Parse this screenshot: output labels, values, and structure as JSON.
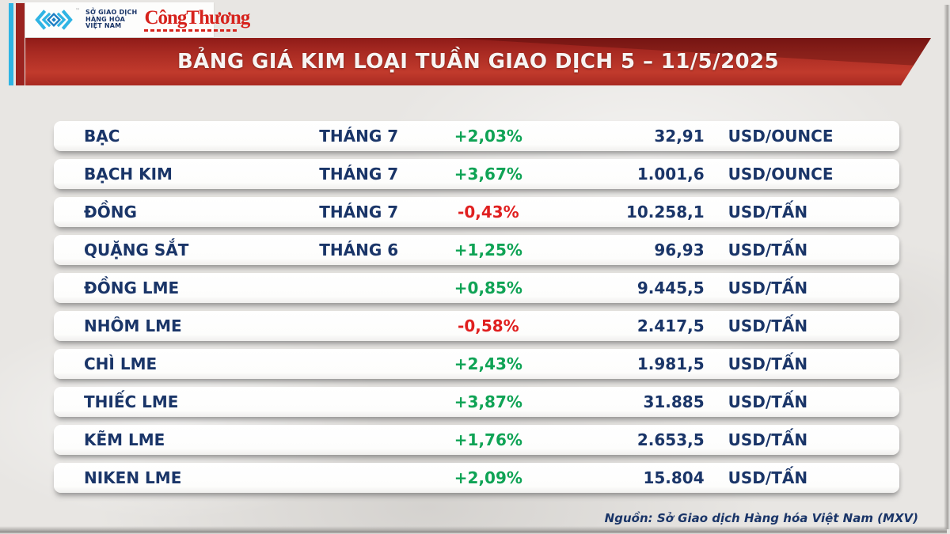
{
  "page": {
    "title_banner": "BẢNG GIÁ KIM LOẠI TUẦN GIAO DỊCH 5 – 11/5/2025",
    "source": "Nguồn: Sở Giao dịch Hàng hóa Việt Nam (MXV)"
  },
  "logo": {
    "mxv_lines": [
      "SỞ GIAO DỊCH",
      "HÀNG HÓA",
      "VIỆT NAM"
    ],
    "trademark": "™",
    "congthuong": "CôngThương"
  },
  "table": {
    "rows": [
      {
        "name": "BẠC",
        "month": "THÁNG 7",
        "change": "+2,03%",
        "direction": "up",
        "price": "32,91",
        "unit": "USD/OUNCE"
      },
      {
        "name": "BẠCH KIM",
        "month": "THÁNG 7",
        "change": "+3,67%",
        "direction": "up",
        "price": "1.001,6",
        "unit": "USD/OUNCE"
      },
      {
        "name": "ĐỒNG",
        "month": "THÁNG 7",
        "change": "-0,43%",
        "direction": "down",
        "price": "10.258,1",
        "unit": "USD/TẤN"
      },
      {
        "name": "QUẶNG SẮT",
        "month": "THÁNG 6",
        "change": "+1,25%",
        "direction": "up",
        "price": "96,93",
        "unit": "USD/TẤN"
      },
      {
        "name": "ĐỒNG LME",
        "month": "",
        "change": "+0,85%",
        "direction": "up",
        "price": "9.445,5",
        "unit": "USD/TẤN"
      },
      {
        "name": "NHÔM LME",
        "month": "",
        "change": "-0,58%",
        "direction": "down",
        "price": "2.417,5",
        "unit": "USD/TẤN"
      },
      {
        "name": "CHÌ LME",
        "month": "",
        "change": "+2,43%",
        "direction": "up",
        "price": "1.981,5",
        "unit": "USD/TẤN"
      },
      {
        "name": "THIẾC LME",
        "month": "",
        "change": "+3,87%",
        "direction": "up",
        "price": "31.885",
        "unit": "USD/TẤN"
      },
      {
        "name": "KẼM LME",
        "month": "",
        "change": "+1,76%",
        "direction": "up",
        "price": "2.653,5",
        "unit": "USD/TẤN"
      },
      {
        "name": "NIKEN LME",
        "month": "",
        "change": "+2,09%",
        "direction": "up",
        "price": "15.804",
        "unit": "USD/TẤN"
      }
    ]
  },
  "colors": {
    "navy": "#1a3568",
    "up": "#0fa355",
    "down": "#e01f1f",
    "cyan": "#2fb4e4",
    "banner-red": "#b02a22",
    "congthuong-red": "#d6221c"
  },
  "chart_data": {
    "type": "table",
    "title": "BẢNG GIÁ KIM LOẠI TUẦN GIAO DỊCH 5 – 11/5/2025",
    "source": "Nguồn: Sở Giao dịch Hàng hóa Việt Nam (MXV)",
    "fields": [
      "name",
      "month",
      "change",
      "price",
      "unit"
    ],
    "rows": [
      [
        "BẠC",
        "THÁNG 7",
        "+2,03%",
        "32,91",
        "USD/OUNCE"
      ],
      [
        "BẠCH KIM",
        "THÁNG 7",
        "+3,67%",
        "1.001,6",
        "USD/OUNCE"
      ],
      [
        "ĐỒNG",
        "THÁNG 7",
        "-0,43%",
        "10.258,1",
        "USD/TẤN"
      ],
      [
        "QUẶNG SẮT",
        "THÁNG 6",
        "+1,25%",
        "96,93",
        "USD/TẤN"
      ],
      [
        "ĐỒNG LME",
        "",
        "+0,85%",
        "9.445,5",
        "USD/TẤN"
      ],
      [
        "NHÔM LME",
        "",
        "-0,58%",
        "2.417,5",
        "USD/TẤN"
      ],
      [
        "CHÌ LME",
        "",
        "+2,43%",
        "1.981,5",
        "USD/TẤN"
      ],
      [
        "THIẾC LME",
        "",
        "+3,87%",
        "31.885",
        "USD/TẤN"
      ],
      [
        "KẼM LME",
        "",
        "+1,76%",
        "2.653,5",
        "USD/TẤN"
      ],
      [
        "NIKEN LME",
        "",
        "+2,09%",
        "15.804",
        "USD/TẤN"
      ]
    ],
    "numeric": {
      "weekly_change_pct": [
        2.03,
        3.67,
        -0.43,
        1.25,
        0.85,
        -0.58,
        2.43,
        3.87,
        1.76,
        2.09
      ],
      "prices": [
        32.91,
        1001.6,
        10258.1,
        96.93,
        9445.5,
        2417.5,
        1981.5,
        31885,
        2653.5,
        15804
      ]
    }
  }
}
